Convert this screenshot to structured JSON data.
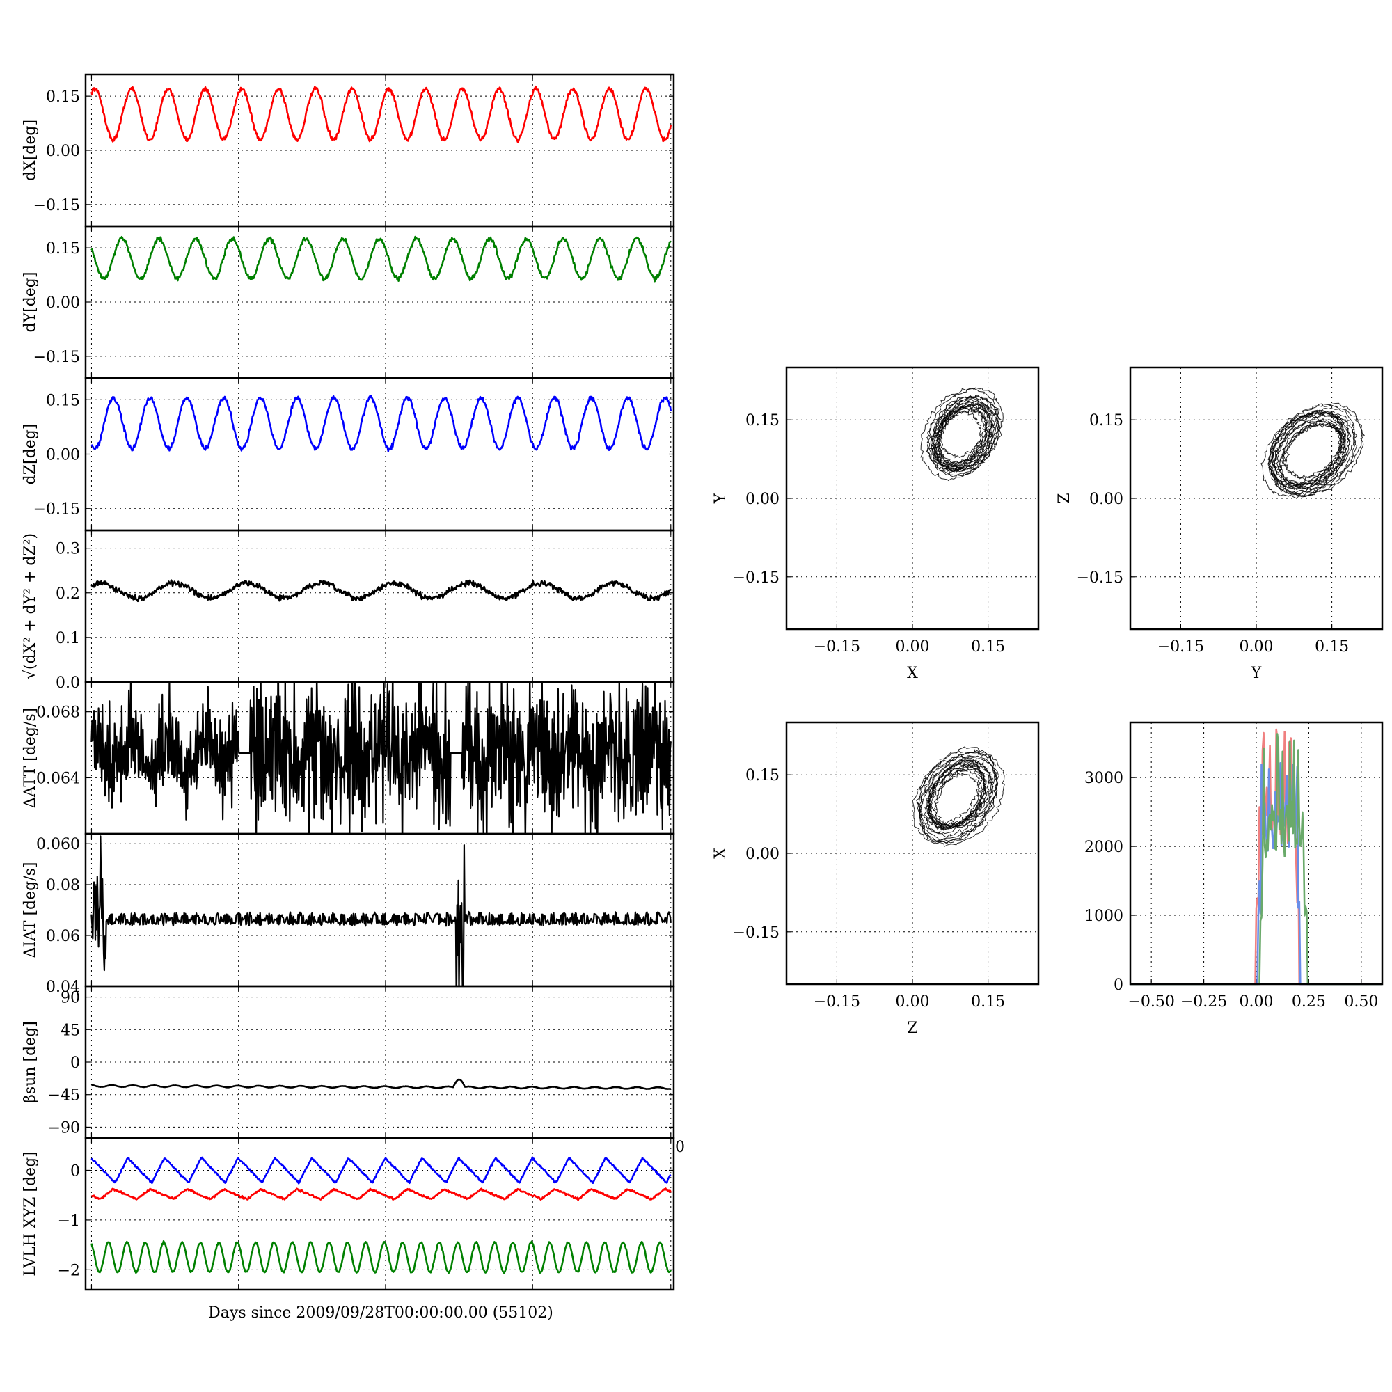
{
  "figure": {
    "xlabel_main": "Days since 2009/09/28T00:00:00.00 (55102)"
  },
  "chart_data": [
    {
      "id": "dX",
      "type": "line",
      "ylabel": "dX[deg]",
      "ylim": [
        -0.21,
        0.21
      ],
      "yticks": [
        "0.15",
        "0.00",
        "−0.15"
      ],
      "ytick_values": [
        0.15,
        0,
        -0.15
      ],
      "xlim": [
        0,
        80
      ],
      "grid": true,
      "series": [
        {
          "color": "#ff0000",
          "cycles": 16,
          "base": 0.1,
          "amp": 0.07,
          "phase": 0.0,
          "noise": 0.006,
          "drift": 0
        }
      ]
    },
    {
      "id": "dY",
      "type": "line",
      "ylabel": "dY[deg]",
      "ylim": [
        -0.21,
        0.21
      ],
      "yticks": [
        "0.15",
        "0.00",
        "−0.15"
      ],
      "ytick_values": [
        0.15,
        0,
        -0.15
      ],
      "xlim": [
        0,
        80
      ],
      "grid": true,
      "series": [
        {
          "color": "#008000",
          "cycles": 16,
          "base": 0.12,
          "amp": 0.055,
          "phase": 1.6,
          "noise": 0.006,
          "drift": 0
        }
      ]
    },
    {
      "id": "dZ",
      "type": "line",
      "ylabel": "dZ[deg]",
      "ylim": [
        -0.21,
        0.21
      ],
      "yticks": [
        "0.15",
        "0.00",
        "−0.15"
      ],
      "ytick_values": [
        0.15,
        0,
        -0.15
      ],
      "xlim": [
        0,
        80
      ],
      "grid": true,
      "series": [
        {
          "color": "#0000ff",
          "cycles": 16,
          "base": 0.085,
          "amp": 0.07,
          "phase": 3.1,
          "noise": 0.006,
          "drift": 0
        }
      ]
    },
    {
      "id": "mag",
      "type": "line",
      "ylabel": "√(dX² + dY² + dZ²)",
      "ylim": [
        0,
        0.34
      ],
      "yticks": [
        "0.3",
        "0.2",
        "0.1",
        "0.0"
      ],
      "ytick_values": [
        0.3,
        0.2,
        0.1,
        0
      ],
      "xlim": [
        0,
        80
      ],
      "grid": true,
      "series": [
        {
          "color": "#000000",
          "cycles": 8,
          "base": 0.205,
          "amp": 0.017,
          "phase": 0.3,
          "noise": 0.006,
          "drift": 0
        }
      ]
    },
    {
      "id": "att",
      "type": "line",
      "ylabel": "ΔATT [deg/s]",
      "ylim": [
        0.0606,
        0.0698
      ],
      "yticks": [
        "0.068",
        "0.064",
        "0.060"
      ],
      "ytick_values": [
        0.068,
        0.064,
        0.06
      ],
      "xlim": [
        0,
        80
      ],
      "grid": true,
      "series": [
        {
          "color": "#000000",
          "kind": "att",
          "base": 0.0655,
          "amp": 0.0016
        }
      ]
    },
    {
      "id": "iat",
      "type": "line",
      "ylabel": "ΔIAT [deg/s]",
      "ylim": [
        0.04,
        0.1
      ],
      "yticks": [
        "0.08",
        "0.06",
        "0.04"
      ],
      "ytick_values": [
        0.08,
        0.06,
        0.04
      ],
      "xlim": [
        0,
        80
      ],
      "grid": true,
      "series": [
        {
          "color": "#000000",
          "kind": "iat",
          "base": 0.0655,
          "amp": 0.001
        }
      ]
    },
    {
      "id": "beta",
      "type": "line",
      "ylabel": "βsun [deg]",
      "ylim": [
        -105,
        105
      ],
      "yticks": [
        "90",
        "45",
        "0",
        "−45",
        "−90"
      ],
      "ytick_values": [
        90,
        45,
        0,
        -45,
        -90
      ],
      "xlim": [
        0,
        80
      ],
      "grid": true,
      "series": [
        {
          "color": "#000000",
          "cycles": 28,
          "base": -33,
          "amp": 1.2,
          "phase": 0,
          "noise": 0.2,
          "drift": -3,
          "bump": true
        }
      ]
    },
    {
      "id": "lvlh",
      "type": "line",
      "ylabel": "LVLH XYZ [deg]",
      "ylim": [
        -2.4,
        0.65
      ],
      "yticks": [
        "0",
        "−1",
        "−2"
      ],
      "ytick_values": [
        0,
        -1,
        -2
      ],
      "xlim": [
        0,
        80
      ],
      "grid": true,
      "xtick_overflow": "0",
      "series": [
        {
          "color": "#0000ff",
          "kind": "saw",
          "cycles": 16,
          "base": -0.05,
          "amp": 0.5,
          "phase": 0.2
        },
        {
          "color": "#ff0000",
          "kind": "saw",
          "cycles": 16,
          "base": -0.5,
          "amp": 0.2,
          "phase": 0.6
        },
        {
          "color": "#008000",
          "kind": "sin",
          "cycles": 32,
          "base": -1.75,
          "amp": 0.3,
          "phase": 0.0
        }
      ]
    },
    {
      "id": "XY",
      "type": "scatter",
      "xlabel": "X",
      "ylabel": "Y",
      "xlim": [
        -0.25,
        0.25
      ],
      "ylim": [
        -0.25,
        0.25
      ],
      "xticks": [
        "−0.15",
        "0.00",
        "0.15"
      ],
      "yticks": [
        "0.15",
        "0.00",
        "−0.15"
      ],
      "grid": true,
      "loop": {
        "cx": 0.1,
        "cy": 0.12,
        "rx": 0.055,
        "ry": 0.075,
        "rot": -35
      }
    },
    {
      "id": "YZ",
      "type": "scatter",
      "xlabel": "Y",
      "ylabel": "Z",
      "xlim": [
        -0.25,
        0.25
      ],
      "ylim": [
        -0.25,
        0.25
      ],
      "xticks": [
        "−0.15",
        "0.00",
        "0.15"
      ],
      "yticks": [
        "0.15",
        "0.00",
        "−0.15"
      ],
      "grid": true,
      "loop": {
        "cx": 0.11,
        "cy": 0.09,
        "rx": 0.06,
        "ry": 0.085,
        "rot": -50
      }
    },
    {
      "id": "ZX",
      "type": "scatter",
      "xlabel": "Z",
      "ylabel": "X",
      "xlim": [
        -0.25,
        0.25
      ],
      "ylim": [
        -0.25,
        0.25
      ],
      "xticks": [
        "−0.15",
        "0.00",
        "0.15"
      ],
      "yticks": [
        "0.15",
        "0.00",
        "−0.15"
      ],
      "grid": true,
      "loop": {
        "cx": 0.09,
        "cy": 0.11,
        "rx": 0.055,
        "ry": 0.08,
        "rot": -40
      }
    },
    {
      "id": "hist",
      "type": "line",
      "xlim": [
        -0.6,
        0.6
      ],
      "ylim": [
        0,
        3800
      ],
      "xticks": [
        "−0.50",
        "−0.25",
        "0.00",
        "0.25",
        "0.50"
      ],
      "xtick_values": [
        -0.5,
        -0.25,
        0,
        0.25,
        0.5
      ],
      "yticks": [
        "3000",
        "2000",
        "1000",
        "0"
      ],
      "ytick_values": [
        3000,
        2000,
        1000,
        0
      ],
      "grid": true,
      "series": [
        {
          "name": "",
          "color": "#f08080",
          "lo": 0.0,
          "hi": 0.2,
          "peak": 3750,
          "level": 2300
        },
        {
          "name": "",
          "color": "#6a8ee8",
          "lo": 0.01,
          "hi": 0.21,
          "peak": 3350,
          "level": 2200
        },
        {
          "name": "",
          "color": "#6aaa6a",
          "lo": 0.02,
          "hi": 0.24,
          "peak": 3750,
          "level": 2100
        }
      ]
    }
  ]
}
